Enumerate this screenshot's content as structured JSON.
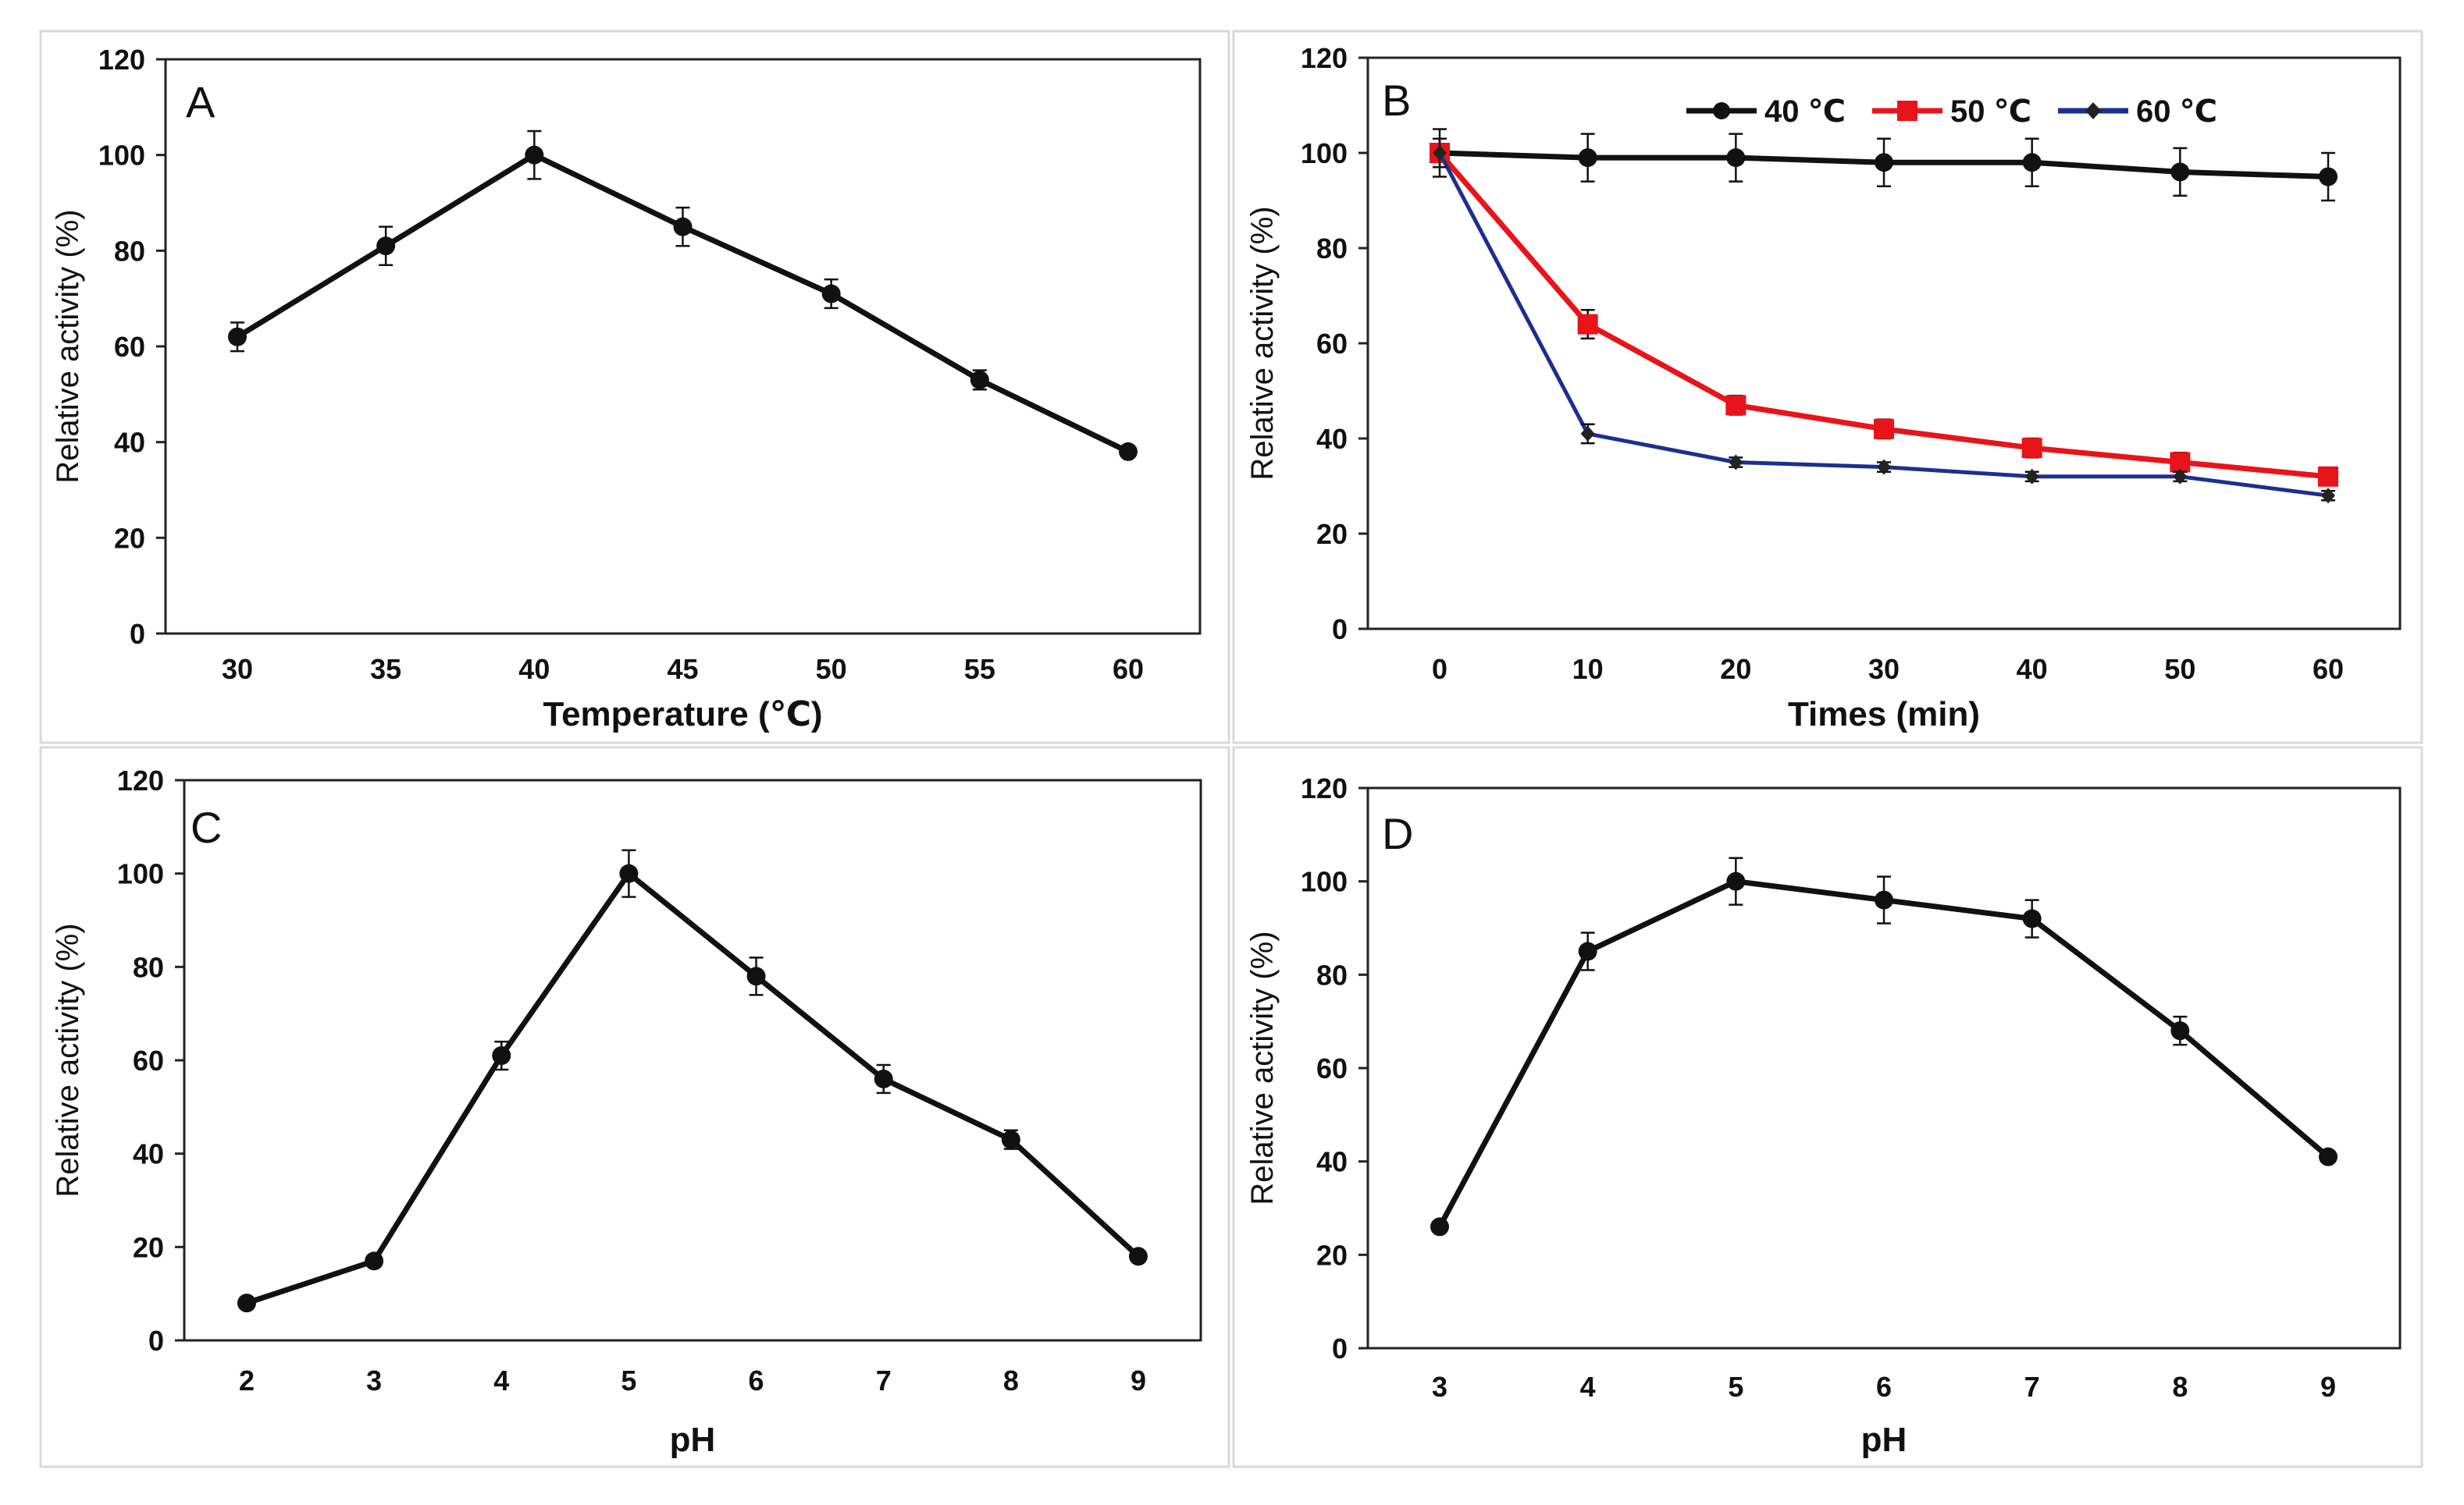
{
  "chart_data": [
    {
      "type": "line",
      "panel_label": "A",
      "xlabel": "Temperature (℃)",
      "ylabel": "Relative activity (%)",
      "x": [
        30,
        35,
        40,
        45,
        50,
        55,
        60
      ],
      "x_tick_labels": [
        "30",
        "35",
        "40",
        "45",
        "50",
        "55",
        "60"
      ],
      "ylim": [
        0,
        120
      ],
      "y_ticks": [
        "0",
        "20",
        "40",
        "60",
        "80",
        "100",
        "120"
      ],
      "grid": false,
      "series": [
        {
          "name": "activity",
          "color": "#111111",
          "marker": "circle",
          "values": [
            62,
            81,
            100,
            85,
            71,
            53,
            38
          ],
          "errors": [
            3,
            4,
            5,
            4,
            3,
            2,
            1
          ]
        }
      ]
    },
    {
      "type": "line",
      "panel_label": "B",
      "xlabel": "Times (min)",
      "ylabel": "Relative activity (%)",
      "x": [
        0,
        10,
        20,
        30,
        40,
        50,
        60
      ],
      "x_tick_labels": [
        "0",
        "10",
        "20",
        "30",
        "40",
        "50",
        "60"
      ],
      "ylim": [
        0,
        120
      ],
      "y_ticks": [
        "0",
        "20",
        "40",
        "60",
        "80",
        "100",
        "120"
      ],
      "grid": false,
      "legend_position": "top",
      "series": [
        {
          "name": "40 ℃",
          "color": "#111111",
          "marker": "circle",
          "values": [
            100,
            99,
            99,
            98,
            98,
            96,
            95
          ],
          "errors": [
            5,
            5,
            5,
            5,
            5,
            5,
            5
          ]
        },
        {
          "name": "50 ℃",
          "color": "#e8141a",
          "marker": "square",
          "values": [
            100,
            64,
            47,
            42,
            38,
            35,
            32
          ],
          "errors": [
            3,
            3,
            2,
            2,
            2,
            2,
            1
          ]
        },
        {
          "name": "60 ℃",
          "color": "#1c2f8f",
          "marker": "diamond",
          "values": [
            100,
            41,
            35,
            34,
            32,
            32,
            28
          ],
          "errors": [
            3,
            2,
            1,
            1,
            1,
            1,
            1
          ]
        }
      ]
    },
    {
      "type": "line",
      "panel_label": "C",
      "xlabel": "pH",
      "ylabel": "Relative activity (%)",
      "x": [
        2,
        3,
        4,
        5,
        6,
        7,
        8,
        9
      ],
      "x_tick_labels": [
        "2",
        "3",
        "4",
        "5",
        "6",
        "7",
        "8",
        "9"
      ],
      "ylim": [
        0,
        120
      ],
      "y_ticks": [
        "0",
        "20",
        "40",
        "60",
        "80",
        "100",
        "120"
      ],
      "grid": false,
      "series": [
        {
          "name": "activity",
          "color": "#111111",
          "marker": "circle",
          "values": [
            8,
            17,
            61,
            100,
            78,
            56,
            43,
            18
          ],
          "errors": [
            1,
            1,
            3,
            5,
            4,
            3,
            2,
            1
          ]
        }
      ]
    },
    {
      "type": "line",
      "panel_label": "D",
      "xlabel": "pH",
      "ylabel": "Relative activity (%)",
      "x": [
        3,
        4,
        5,
        6,
        7,
        8,
        9
      ],
      "x_tick_labels": [
        "3",
        "4",
        "5",
        "6",
        "7",
        "8",
        "9"
      ],
      "ylim": [
        0,
        120
      ],
      "y_ticks": [
        "0",
        "20",
        "40",
        "60",
        "80",
        "100",
        "120"
      ],
      "grid": false,
      "series": [
        {
          "name": "activity",
          "color": "#111111",
          "marker": "circle",
          "values": [
            26,
            85,
            100,
            96,
            92,
            68,
            41
          ],
          "errors": [
            1,
            4,
            5,
            5,
            4,
            3,
            1
          ]
        }
      ]
    }
  ]
}
